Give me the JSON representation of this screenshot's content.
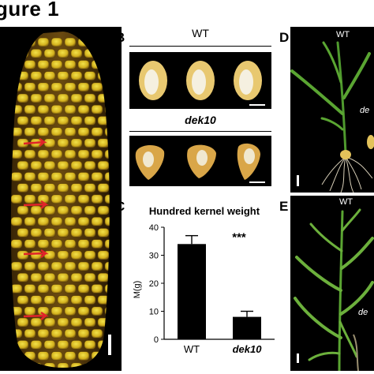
{
  "figure": {
    "title": "gure 1"
  },
  "panels": {
    "A": {
      "arrow_color": "#e0242a",
      "scale_bar_color": "#ffffff"
    },
    "B": {
      "letter": "B",
      "wt_label": "WT",
      "mutant_label": "dek10",
      "wt_kernel_color": "#e8c870",
      "mutant_kernel_color": "#d9a648"
    },
    "C": {
      "letter": "C"
    },
    "D": {
      "letter": "D",
      "wt_label": "WT",
      "mutant_label": "de"
    },
    "E": {
      "letter": "E",
      "wt_label": "WT",
      "mutant_label": "de"
    }
  },
  "chart_data": {
    "type": "bar",
    "title": "Hundred kernel weight",
    "ylabel": "M(g)",
    "categories": [
      "WT",
      "dek10"
    ],
    "values": [
      34,
      8
    ],
    "errors": [
      3,
      2
    ],
    "ylim": [
      0,
      40
    ],
    "yticks": [
      0,
      10,
      20,
      30,
      40
    ],
    "annotation": "***",
    "bar_color": "#000000"
  }
}
